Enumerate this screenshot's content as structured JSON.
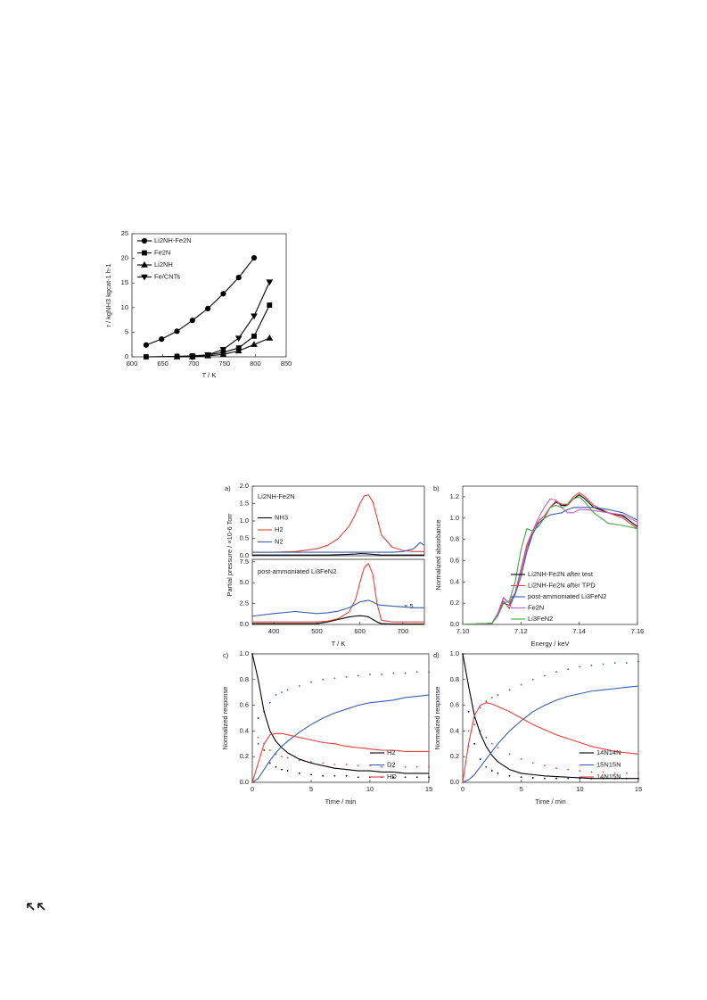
{
  "chart_data": [
    {
      "type": "line",
      "xlabel": "T / K",
      "ylabel": "r / kgNH3 kgcat-1 h-1",
      "xlim": [
        600,
        850
      ],
      "xticks": [
        600,
        650,
        700,
        750,
        800,
        850
      ],
      "ylim": [
        0,
        25
      ],
      "yticks": [
        0,
        5,
        10,
        15,
        20,
        25
      ],
      "legend": "upper left",
      "series": [
        {
          "name": "Li2NH-Fe2N",
          "color": "#000000",
          "marker": "circle",
          "x": [
            623,
            648,
            673,
            698,
            723,
            748,
            773,
            798
          ],
          "values": [
            2.4,
            3.6,
            5.2,
            7.4,
            9.8,
            12.8,
            16.1,
            20.1
          ]
        },
        {
          "name": "Fe2N",
          "color": "#000000",
          "marker": "square",
          "x": [
            623,
            673,
            698,
            723,
            748,
            773,
            798,
            823
          ],
          "values": [
            0,
            0.1,
            0.2,
            0.4,
            0.9,
            1.8,
            4.2,
            10.5
          ]
        },
        {
          "name": "Li2NH",
          "color": "#000000",
          "marker": "triangle-up",
          "x": [
            673,
            698,
            723,
            748,
            773,
            798,
            823
          ],
          "values": [
            0,
            0,
            0.2,
            0.5,
            1.2,
            2.5,
            3.8
          ]
        },
        {
          "name": "Fe/CNTs",
          "color": "#000000",
          "marker": "triangle-down",
          "x": [
            698,
            723,
            748,
            773,
            798,
            823
          ],
          "values": [
            0,
            0.4,
            1.5,
            3.8,
            8.3,
            15.2
          ]
        }
      ]
    },
    {
      "type": "line",
      "panel": "a)",
      "annotations": [
        "Li2NH-Fe2N"
      ],
      "ylabel": "Partial pressure / ×10-6 Torr",
      "xlim": [
        350,
        750
      ],
      "ylim": [
        0,
        2
      ],
      "yticks": [
        {
          "value": 0,
          "label": "0.0"
        },
        0.5,
        {
          "value": 1,
          "label": "1.0"
        },
        1.5,
        {
          "value": 2,
          "label": "2.0"
        }
      ],
      "legend": "center left",
      "x": [
        350,
        400,
        450,
        500,
        525,
        550,
        575,
        590,
        600,
        610,
        620,
        630,
        640,
        650,
        675,
        700,
        725,
        740,
        750
      ],
      "series": [
        {
          "name": "NH3",
          "color": "#000000",
          "values": [
            0.02,
            0.02,
            0.02,
            0.02,
            0.02,
            0.03,
            0.04,
            0.05,
            0.06,
            0.06,
            0.05,
            0.04,
            0.03,
            0.02,
            0.02,
            0.02,
            0.02,
            0.02,
            0.02
          ]
        },
        {
          "name": "H2",
          "color": "#e8413c",
          "values": [
            0.1,
            0.1,
            0.12,
            0.2,
            0.3,
            0.5,
            0.85,
            1.2,
            1.5,
            1.72,
            1.75,
            1.55,
            1.1,
            0.6,
            0.25,
            0.15,
            0.12,
            0.12,
            0.12
          ]
        },
        {
          "name": "N2",
          "color": "#3a5dae",
          "values": [
            0.1,
            0.1,
            0.1,
            0.1,
            0.1,
            0.1,
            0.1,
            0.1,
            0.1,
            0.1,
            0.1,
            0.1,
            0.1,
            0.1,
            0.1,
            0.12,
            0.2,
            0.38,
            0.3
          ]
        }
      ]
    },
    {
      "type": "line",
      "annotations": [
        "post-ammoniated Li3FeN2",
        "× 5"
      ],
      "xlabel": "T / K",
      "xlim": [
        350,
        750
      ],
      "xticks": [
        400,
        500,
        600,
        700
      ],
      "ylim": [
        0,
        7.8
      ],
      "yticks": [
        {
          "value": 0,
          "label": "0.0"
        },
        2.5,
        {
          "value": 5,
          "label": "5.0"
        },
        7.5
      ],
      "x": [
        350,
        400,
        450,
        500,
        525,
        550,
        575,
        590,
        600,
        610,
        620,
        630,
        640,
        650,
        675,
        700,
        725,
        740,
        750
      ],
      "series": [
        {
          "color": "#000000",
          "values": [
            0.1,
            0.1,
            0.1,
            0.1,
            0.3,
            0.6,
            0.9,
            1.0,
            1.05,
            1.0,
            0.9,
            0.6,
            0.3,
            0.1,
            0.05,
            0.05,
            0.05,
            0.05,
            0.05
          ]
        },
        {
          "color": "#e8413c",
          "values": [
            0.3,
            0.3,
            0.3,
            0.3,
            0.4,
            0.7,
            1.5,
            3.0,
            5.0,
            6.8,
            7.3,
            6.0,
            2.5,
            0.5,
            0.3,
            0.3,
            0.3,
            0.3,
            0.3
          ]
        },
        {
          "color": "#3a5dae",
          "values": [
            1.0,
            1.3,
            1.55,
            1.3,
            1.4,
            1.6,
            2.0,
            2.4,
            2.7,
            2.8,
            2.9,
            2.7,
            2.4,
            2.3,
            2.2,
            2.1,
            2.0,
            2.0,
            2.0
          ]
        }
      ]
    },
    {
      "type": "line",
      "panel": "b)",
      "xlabel": "Energy / keV",
      "ylabel": "Normalized absorbance",
      "xlim": [
        7.1,
        7.16
      ],
      "xticks": [
        {
          "value": 7.1,
          "label": "7.10"
        },
        7.12,
        7.14,
        {
          "value": 7.16,
          "label": "7.16"
        }
      ],
      "ylim": [
        0,
        1.3
      ],
      "yticks": [
        {
          "value": 0,
          "label": "0.0"
        },
        0.2,
        0.4,
        0.6,
        0.8,
        {
          "value": 1,
          "label": "1.0"
        },
        1.2
      ],
      "legend": "lower right",
      "x": [
        7.1,
        7.11,
        7.112,
        7.114,
        7.116,
        7.118,
        7.12,
        7.122,
        7.124,
        7.126,
        7.128,
        7.13,
        7.132,
        7.134,
        7.136,
        7.138,
        7.14,
        7.142,
        7.145,
        7.15,
        7.155,
        7.16
      ],
      "series": [
        {
          "name": "Li2NH-Fe2N after test",
          "color": "#000000",
          "values": [
            0,
            0.01,
            0.1,
            0.25,
            0.2,
            0.3,
            0.5,
            0.72,
            0.85,
            0.95,
            1.0,
            1.1,
            1.15,
            1.12,
            1.12,
            1.18,
            1.22,
            1.18,
            1.1,
            1.05,
            1.02,
            0.92
          ]
        },
        {
          "name": "Li2NH-Fe2N after TPD",
          "color": "#e8413c",
          "values": [
            0,
            0.01,
            0.1,
            0.22,
            0.15,
            0.3,
            0.52,
            0.75,
            0.88,
            0.97,
            1.02,
            1.1,
            1.16,
            1.13,
            1.13,
            1.2,
            1.24,
            1.2,
            1.12,
            1.05,
            1.0,
            0.9
          ]
        },
        {
          "name": "post-ammoniated Li3FeN2",
          "color": "#3a5dae",
          "values": [
            0,
            0.01,
            0.08,
            0.2,
            0.18,
            0.28,
            0.45,
            0.68,
            0.85,
            0.95,
            1.0,
            1.03,
            1.04,
            1.05,
            1.08,
            1.1,
            1.1,
            1.1,
            1.1,
            1.08,
            1.05,
            0.98
          ]
        },
        {
          "name": "Fe2N",
          "color": "#c060c0",
          "values": [
            0,
            0.01,
            0.1,
            0.25,
            0.2,
            0.3,
            0.5,
            0.72,
            0.88,
            1.0,
            1.1,
            1.18,
            1.17,
            1.1,
            1.05,
            1.05,
            1.08,
            1.08,
            1.07,
            1.05,
            1.03,
            0.96
          ]
        },
        {
          "name": "Li3FeN2",
          "color": "#4aa04a",
          "values": [
            0,
            0.01,
            0.08,
            0.2,
            0.22,
            0.4,
            0.7,
            0.9,
            0.88,
            0.92,
            1.0,
            1.1,
            1.12,
            1.1,
            1.12,
            1.18,
            1.2,
            1.15,
            1.05,
            0.95,
            0.93,
            0.9
          ]
        }
      ]
    },
    {
      "type": "line",
      "panel": "c)",
      "xlabel": "Time / min",
      "ylabel": "Normalized response",
      "xlim": [
        0,
        15
      ],
      "xticks": [
        0,
        5,
        10,
        15
      ],
      "ylim": [
        0,
        1
      ],
      "yticks": [
        {
          "value": 0,
          "label": "0.0"
        },
        0.2,
        0.4,
        0.6,
        0.8,
        {
          "value": 1,
          "label": "1.0"
        }
      ],
      "legend": "lower right",
      "x": [
        0,
        0.5,
        1,
        1.5,
        2,
        2.5,
        3,
        4,
        5,
        6,
        7,
        8,
        9,
        10,
        11,
        12,
        13,
        14,
        15
      ],
      "series": [
        {
          "name": "H2",
          "color": "#000000",
          "values": [
            1.0,
            0.8,
            0.55,
            0.4,
            0.32,
            0.27,
            0.23,
            0.18,
            0.15,
            0.13,
            0.11,
            0.1,
            0.09,
            0.09,
            0.08,
            0.08,
            0.07,
            0.07,
            0.07
          ]
        },
        {
          "name": "D2",
          "color": "#3a5dae",
          "values": [
            0,
            0.03,
            0.1,
            0.17,
            0.23,
            0.28,
            0.32,
            0.39,
            0.45,
            0.5,
            0.54,
            0.57,
            0.6,
            0.62,
            0.63,
            0.64,
            0.66,
            0.67,
            0.68
          ]
        },
        {
          "name": "HD",
          "color": "#e8413c",
          "values": [
            0,
            0.15,
            0.3,
            0.37,
            0.38,
            0.38,
            0.37,
            0.35,
            0.33,
            0.31,
            0.3,
            0.28,
            0.27,
            0.26,
            0.25,
            0.25,
            0.24,
            0.24,
            0.24
          ]
        }
      ],
      "dots": [
        {
          "color": "#000000",
          "values": [
            1.0,
            0.5,
            0.25,
            0.15,
            0.12,
            0.1,
            0.09,
            0.07,
            0.06,
            0.05,
            0.05,
            0.05,
            0.04,
            0.04,
            0.04,
            0.04,
            0.04,
            0.04,
            0.04
          ]
        },
        {
          "color": "#3a5dae",
          "values": [
            0,
            0.3,
            0.55,
            0.62,
            0.68,
            0.7,
            0.72,
            0.75,
            0.78,
            0.8,
            0.81,
            0.82,
            0.83,
            0.84,
            0.84,
            0.85,
            0.85,
            0.86,
            0.86
          ]
        },
        {
          "color": "#e8413c",
          "values": [
            0,
            0.35,
            0.3,
            0.25,
            0.22,
            0.2,
            0.19,
            0.17,
            0.16,
            0.15,
            0.14,
            0.14,
            0.13,
            0.13,
            0.12,
            0.12,
            0.12,
            0.12,
            0.12
          ]
        }
      ]
    },
    {
      "type": "line",
      "panel": "d)",
      "xlabel": "Time / min",
      "ylabel": "Normalized response",
      "xlim": [
        0,
        15
      ],
      "xticks": [
        0,
        5,
        10,
        15
      ],
      "ylim": [
        0,
        1
      ],
      "yticks": [
        {
          "value": 0,
          "label": "0.0"
        },
        0.2,
        0.4,
        0.6,
        0.8,
        {
          "value": 1,
          "label": "1.0"
        }
      ],
      "legend": "lower right",
      "x": [
        0,
        0.5,
        1,
        1.5,
        2,
        2.5,
        3,
        4,
        5,
        6,
        7,
        8,
        9,
        10,
        11,
        12,
        13,
        14,
        15
      ],
      "series": [
        {
          "name": "14N14N",
          "color": "#000000",
          "values": [
            1.0,
            0.75,
            0.52,
            0.38,
            0.28,
            0.21,
            0.16,
            0.1,
            0.07,
            0.06,
            0.05,
            0.045,
            0.04,
            0.035,
            0.03,
            0.03,
            0.03,
            0.03,
            0.03
          ]
        },
        {
          "name": "15N15N",
          "color": "#3a5dae",
          "values": [
            0,
            0.02,
            0.06,
            0.12,
            0.18,
            0.24,
            0.3,
            0.4,
            0.48,
            0.55,
            0.6,
            0.64,
            0.67,
            0.69,
            0.71,
            0.72,
            0.73,
            0.74,
            0.75
          ]
        },
        {
          "name": "14N15N",
          "color": "#e8413c",
          "values": [
            0,
            0.3,
            0.52,
            0.6,
            0.62,
            0.61,
            0.59,
            0.55,
            0.5,
            0.45,
            0.41,
            0.37,
            0.34,
            0.31,
            0.28,
            0.26,
            0.24,
            0.23,
            0.22
          ]
        }
      ],
      "dots": [
        {
          "color": "#000000",
          "values": [
            1.0,
            0.55,
            0.3,
            0.18,
            0.12,
            0.09,
            0.07,
            0.05,
            0.04,
            0.035,
            0.03,
            0.03,
            0.03,
            0.03,
            0.03,
            0.03,
            0.03,
            0.03,
            0.03
          ]
        },
        {
          "color": "#3a5dae",
          "values": [
            0,
            0.28,
            0.5,
            0.58,
            0.63,
            0.66,
            0.68,
            0.72,
            0.76,
            0.8,
            0.83,
            0.86,
            0.88,
            0.9,
            0.91,
            0.92,
            0.93,
            0.93,
            0.94
          ]
        },
        {
          "color": "#e8413c",
          "values": [
            0,
            0.4,
            0.45,
            0.4,
            0.35,
            0.3,
            0.27,
            0.22,
            0.18,
            0.15,
            0.13,
            0.11,
            0.1,
            0.09,
            0.08,
            0.08,
            0.07,
            0.07,
            0.07
          ]
        }
      ]
    }
  ]
}
